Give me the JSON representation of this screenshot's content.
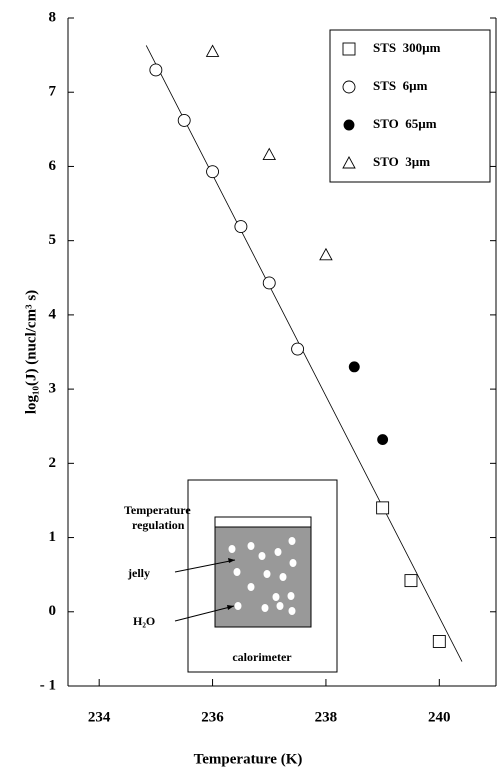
{
  "chart_data": {
    "type": "scatter",
    "x_label": "Temperature  (K)",
    "y_label": "log₁₀(J)   (nucl/cm³ s)",
    "xlim": [
      233.45,
      241
    ],
    "xticks": [
      234,
      236,
      238,
      240
    ],
    "ylim": [
      -1,
      8
    ],
    "yticks": [
      {
        "value": -1,
        "label": "- 1"
      },
      0,
      1,
      2,
      3,
      4,
      5,
      6,
      7,
      8
    ],
    "legend": "upper right",
    "series": [
      {
        "name": "STS  300µm",
        "marker": "square",
        "color": "#000000",
        "x": [
          239,
          239.5,
          240
        ],
        "values": [
          1.4,
          0.42,
          -0.4
        ]
      },
      {
        "name": "STS  6µm",
        "marker": "circle",
        "color": "#000000",
        "x": [
          235,
          235.5,
          236,
          236.5,
          237,
          237.5
        ],
        "values": [
          7.3,
          6.62,
          5.93,
          5.19,
          4.43,
          3.54
        ]
      },
      {
        "name": "STO  65µm",
        "marker": "filled-circle",
        "color": "#000000",
        "x": [
          238.5,
          239
        ],
        "values": [
          3.3,
          2.32
        ]
      },
      {
        "name": "STO  3µm",
        "marker": "triangle",
        "color": "#000000",
        "x": [
          236,
          237,
          238
        ],
        "values": [
          7.55,
          6.16,
          4.81
        ]
      }
    ],
    "fit_line": {
      "x": [
        234.83,
        240.4
      ],
      "values": [
        7.63,
        -0.67
      ]
    },
    "inset": {
      "regulation": [
        "Temperature",
        "regulation"
      ],
      "jelly": "jelly",
      "water": "H₂O",
      "label": "calorimeter"
    }
  }
}
